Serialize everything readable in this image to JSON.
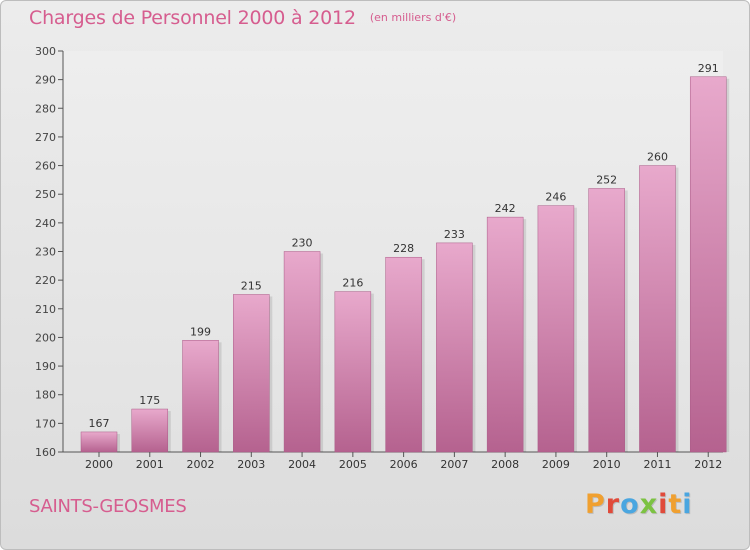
{
  "header": {
    "title": "Charges de Personnel 2000 à 2012",
    "subtitle": "(en milliers d'€)"
  },
  "footer": {
    "commune": "SAINTS-GEOSMES",
    "logo_text": "Proxiti",
    "logo_colors": [
      "#f0a030",
      "#e04a3a",
      "#4aa6e0",
      "#7cc242",
      "#e04a3a",
      "#f0a030",
      "#4aa6e0"
    ]
  },
  "colors": {
    "bar_top": "#e8a9cc",
    "bar_bottom": "#b5628f",
    "accent": "#d65d8f"
  },
  "chart_data": {
    "type": "bar",
    "categories": [
      "2000",
      "2001",
      "2002",
      "2003",
      "2004",
      "2005",
      "2006",
      "2007",
      "2008",
      "2009",
      "2010",
      "2011",
      "2012"
    ],
    "values": [
      167,
      175,
      199,
      215,
      230,
      216,
      228,
      233,
      242,
      246,
      252,
      260,
      291
    ],
    "title": "Charges de Personnel 2000 à 2012",
    "subtitle": "(en milliers d'€)",
    "xlabel": "",
    "ylabel": "",
    "ylim": [
      160,
      300
    ],
    "yticks": [
      160,
      170,
      180,
      190,
      200,
      210,
      220,
      230,
      240,
      250,
      260,
      270,
      280,
      290,
      300
    ],
    "grid": false,
    "data_labels": true
  }
}
